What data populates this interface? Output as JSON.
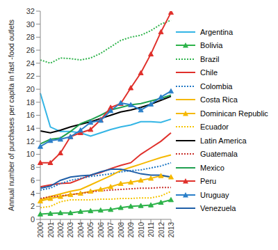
{
  "chart_data": {
    "type": "line",
    "y_label": "Annual number of purchases per capita in fast -food outlets",
    "categories": [
      "2000",
      "2001",
      "2002",
      "2003",
      "2004",
      "2005",
      "2006",
      "2007",
      "2008",
      "2009",
      "2010",
      "2011",
      "2012",
      "2013"
    ],
    "ylim": [
      0,
      32
    ],
    "yticks": [
      0,
      2,
      4,
      6,
      8,
      10,
      12,
      14,
      16,
      18,
      20,
      22,
      24,
      26,
      28,
      30,
      32
    ],
    "grid": false,
    "legend": "right",
    "series": [
      {
        "name": "Argentina",
        "color": "#33b5e5",
        "line_style": "solid",
        "marker": "none",
        "values": [
          19.4,
          14.2,
          13.5,
          13.5,
          13.3,
          12.8,
          13.3,
          13.8,
          14.2,
          14.5,
          15.0,
          15.0,
          14.9,
          15.4
        ]
      },
      {
        "name": "Bolivia",
        "color": "#2db34a",
        "line_style": "solid",
        "marker": "triangle",
        "values": [
          0.8,
          0.9,
          1.0,
          1.0,
          1.2,
          1.3,
          1.4,
          1.5,
          1.8,
          2.0,
          2.1,
          2.2,
          2.6,
          3.0
        ]
      },
      {
        "name": "Brazil",
        "color": "#2db34a",
        "line_style": "dotted",
        "marker": "none",
        "values": [
          24.5,
          24.0,
          24.8,
          24.7,
          24.5,
          24.8,
          25.5,
          26.5,
          27.5,
          28.0,
          28.3,
          29.0,
          30.0,
          30.6
        ]
      },
      {
        "name": "Chile",
        "color": "#e0302b",
        "line_style": "solid",
        "marker": "none",
        "values": [
          5.0,
          5.3,
          5.5,
          5.6,
          6.2,
          6.8,
          7.2,
          7.8,
          8.3,
          8.7,
          10.0,
          11.0,
          12.0,
          13.3
        ]
      },
      {
        "name": "Colombia",
        "color": "#1f77c4",
        "line_style": "dotted",
        "marker": "none",
        "values": [
          4.5,
          4.8,
          5.5,
          6.0,
          6.3,
          6.6,
          6.8,
          7.0,
          7.3,
          7.5,
          7.6,
          7.9,
          8.2,
          8.7
        ]
      },
      {
        "name": "Costa Rica",
        "color": "#f5b800",
        "line_style": "solid",
        "marker": "none",
        "values": [
          3.0,
          3.5,
          3.9,
          4.3,
          4.6,
          5.3,
          6.0,
          6.7,
          7.5,
          8.0,
          8.5,
          9.0,
          9.5,
          9.9
        ]
      },
      {
        "name": "Dominican Republic",
        "color": "#f5b800",
        "line_style": "solid",
        "marker": "triangle",
        "values": [
          2.8,
          3.2,
          3.5,
          3.8,
          4.0,
          4.3,
          4.6,
          5.0,
          5.5,
          5.7,
          6.0,
          6.3,
          6.7,
          6.5
        ]
      },
      {
        "name": "Ecuador",
        "color": "#f5c400",
        "line_style": "dotted",
        "marker": "none",
        "values": [
          1.8,
          2.0,
          2.7,
          3.0,
          3.0,
          3.0,
          3.1,
          3.1,
          3.2,
          3.2,
          3.3,
          3.3,
          3.6,
          4.3
        ]
      },
      {
        "name": "Latin America",
        "color": "#000000",
        "line_style": "solid",
        "marker": "none",
        "values": [
          13.6,
          13.3,
          13.7,
          14.2,
          14.6,
          15.0,
          15.5,
          16.0,
          16.5,
          16.8,
          17.2,
          17.7,
          18.3,
          18.9
        ]
      },
      {
        "name": "Guatemala",
        "color": "#c8302b",
        "line_style": "dotted",
        "marker": "none",
        "values": [
          3.2,
          3.5,
          3.6,
          3.8,
          4.0,
          4.2,
          4.4,
          4.5,
          4.6,
          4.7,
          4.8,
          4.8,
          4.9,
          4.9
        ]
      },
      {
        "name": "Mexico",
        "color": "#20a050",
        "line_style": "solid",
        "marker": "none",
        "values": [
          11.6,
          12.3,
          12.5,
          13.5,
          14.7,
          15.3,
          16.0,
          16.8,
          17.2,
          17.6,
          17.8,
          18.2,
          18.6,
          19.1
        ]
      },
      {
        "name": "Peru",
        "color": "#e0302b",
        "line_style": "solid",
        "marker": "triangle",
        "values": [
          8.7,
          8.7,
          10.2,
          12.7,
          13.3,
          13.8,
          15.3,
          17.2,
          17.8,
          20.2,
          22.5,
          25.4,
          28.8,
          31.8
        ]
      },
      {
        "name": "Uruguay",
        "color": "#2a7fc9",
        "line_style": "solid",
        "marker": "triangle",
        "values": [
          11.2,
          12.1,
          12.3,
          12.7,
          13.7,
          14.9,
          15.2,
          16.7,
          17.9,
          17.6,
          16.8,
          17.7,
          18.8,
          19.7
        ]
      },
      {
        "name": "Venezuela",
        "color": "#1f5fa8",
        "line_style": "solid",
        "marker": "none",
        "values": [
          4.8,
          5.1,
          6.0,
          6.5,
          6.7,
          6.8,
          7.3,
          7.7,
          7.7,
          7.4,
          7.0,
          6.8,
          6.8,
          6.5
        ]
      }
    ]
  }
}
